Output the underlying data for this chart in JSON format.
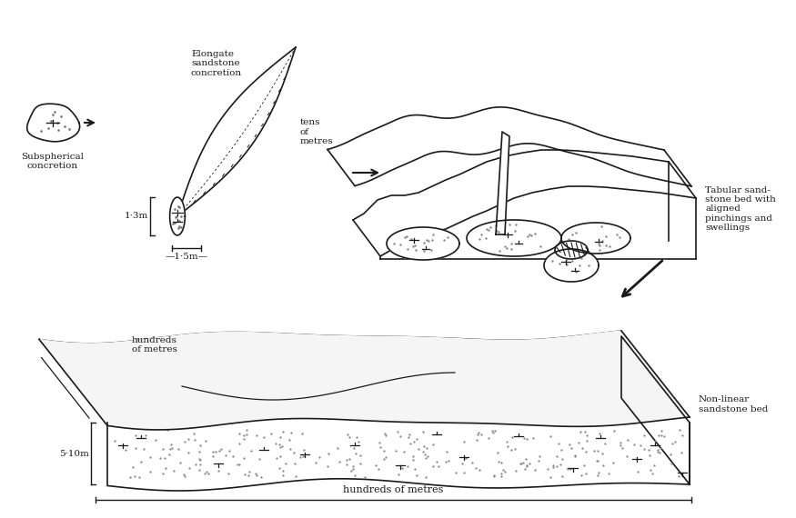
{
  "bg_color": "#ffffff",
  "line_color": "#1a1a1a",
  "figsize": [
    8.75,
    5.7
  ],
  "dpi": 100,
  "label_subsphere": "Subspherical\nconcretion",
  "label_elongate": "Elongate\nsandstone\nconcretion",
  "label_tens": "tens\nof\nmetres",
  "label_1_3m": "1·3m",
  "label_1_5m": "—1·5m—",
  "label_tabular": "Tabular sand-\nstone bed with\naligned\npinchings and\nswellings",
  "label_nonlinear": "Non-linear\nsandstone bed",
  "label_hundreds_top": "hundreds\nof metres",
  "label_hundreds_bottom": "hundreds of metres",
  "label_5_10m": "5·10m"
}
